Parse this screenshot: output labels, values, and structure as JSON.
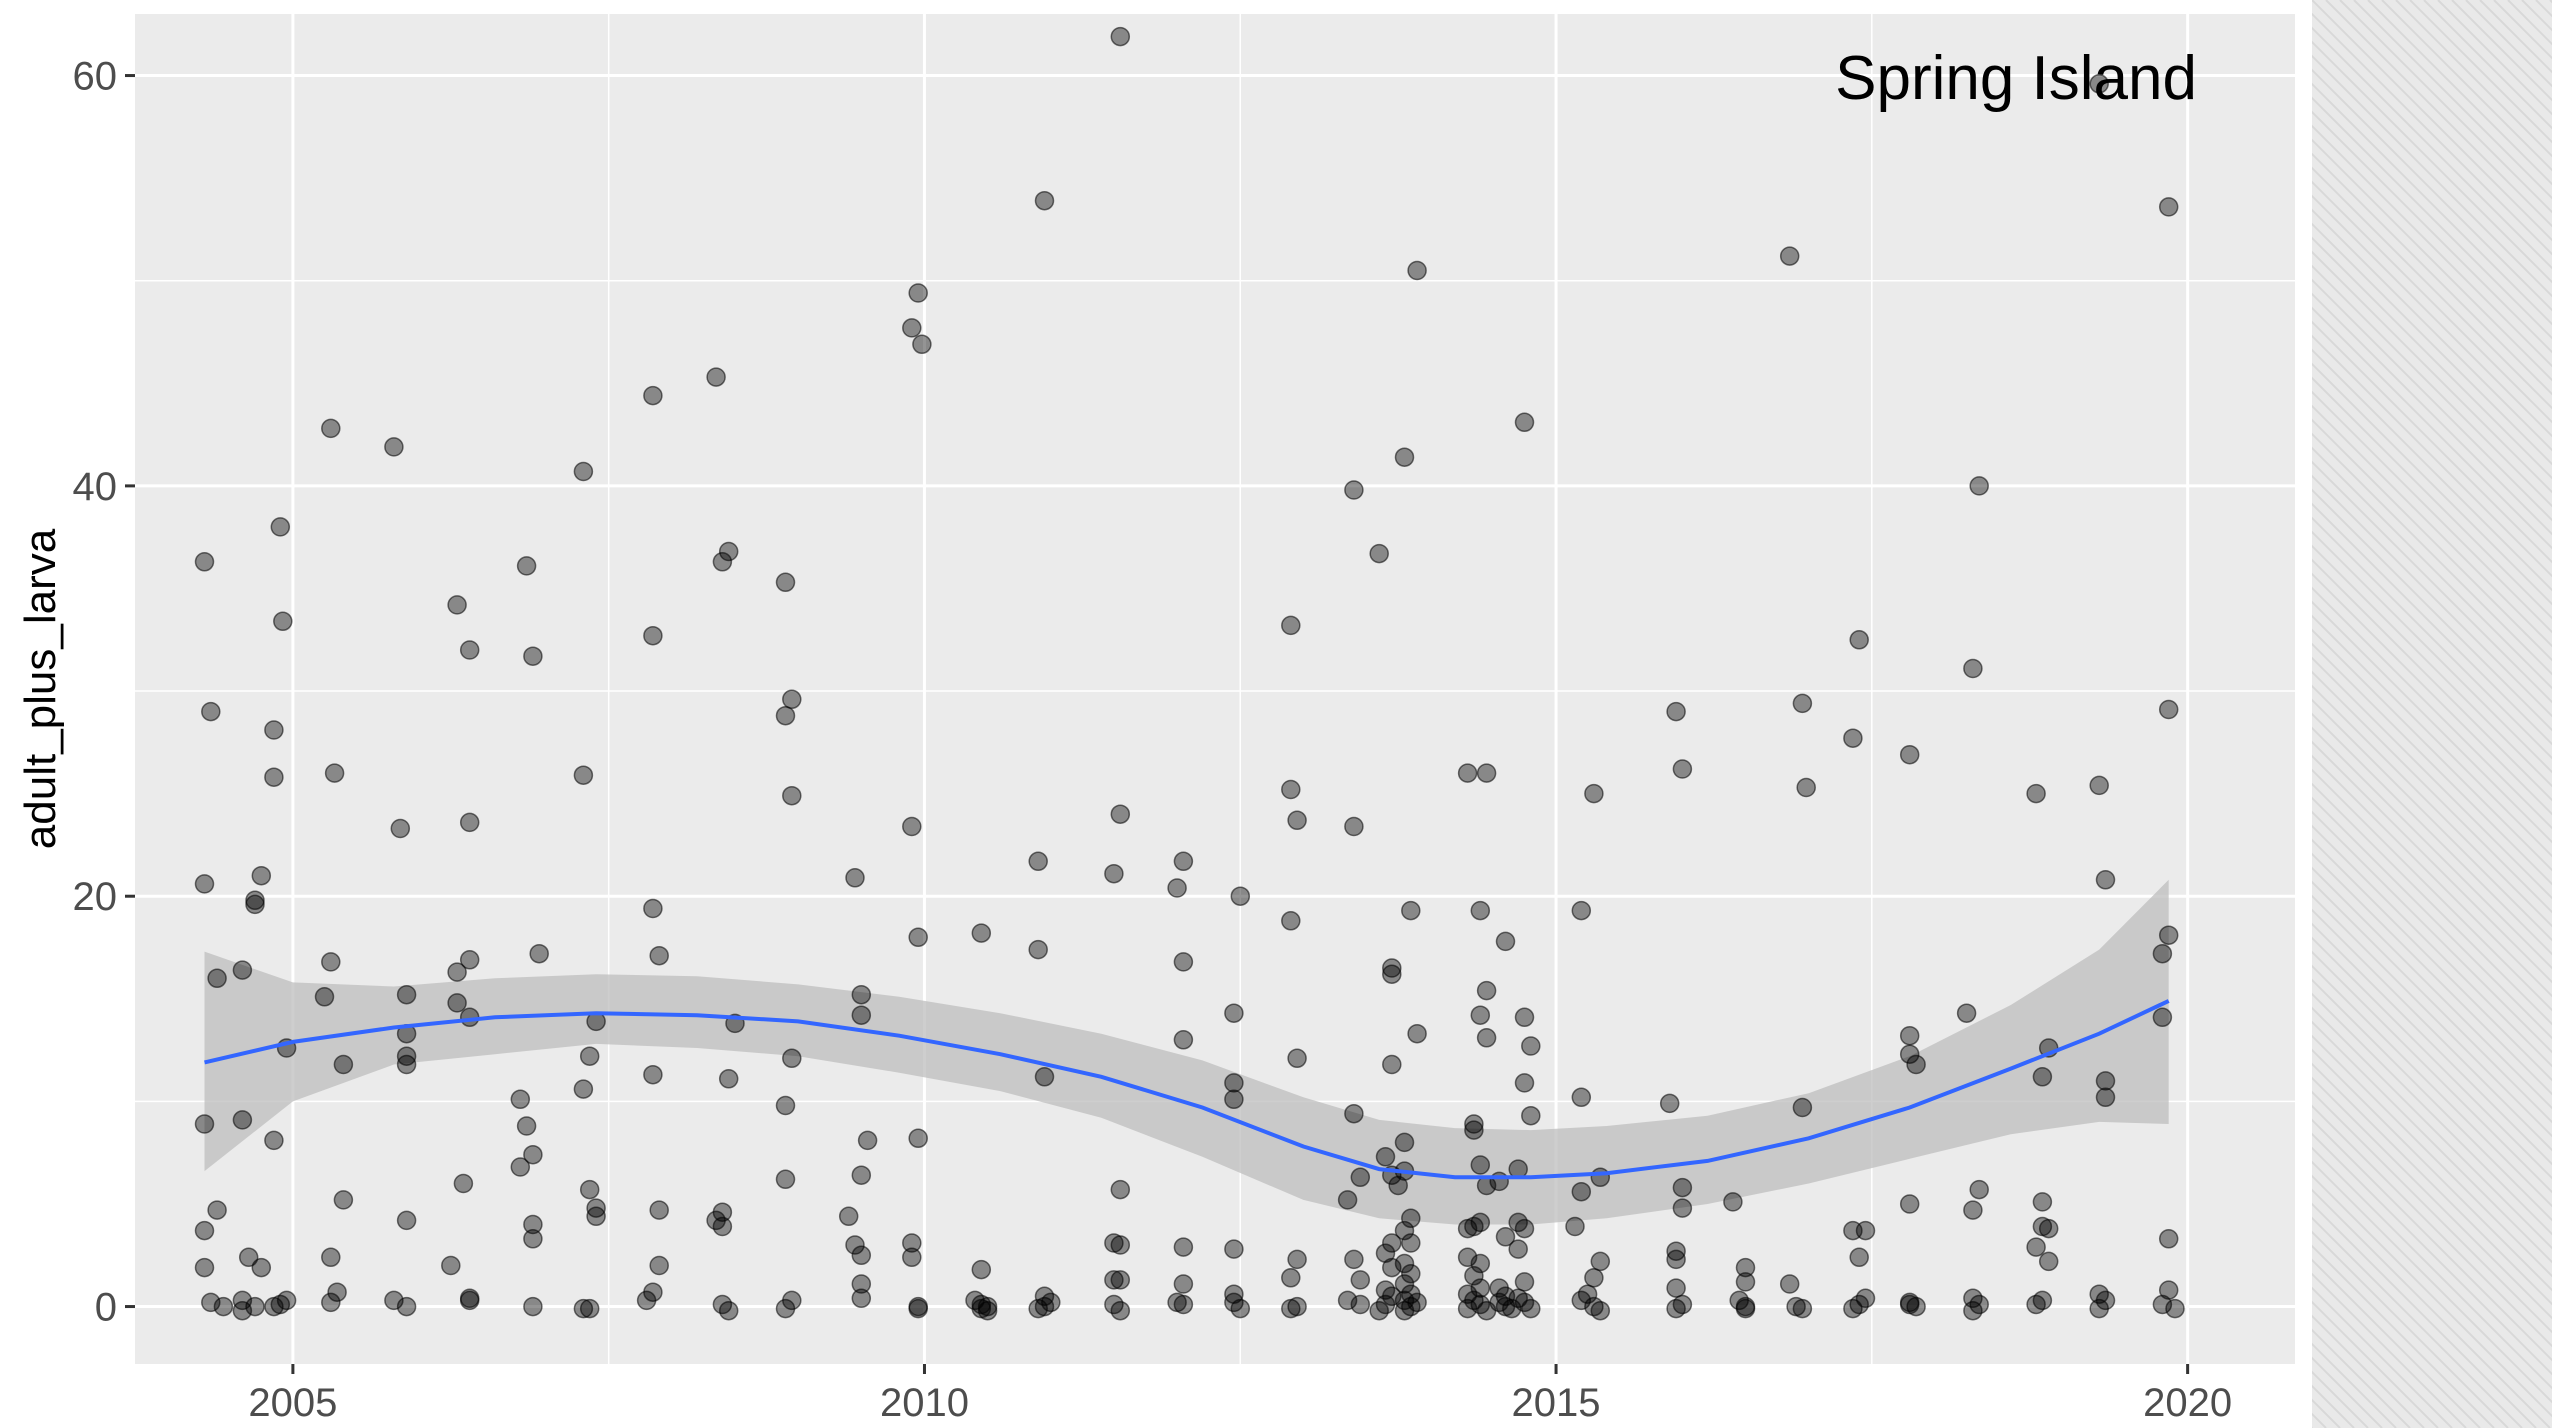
{
  "chart_data": {
    "type": "scatter",
    "title": "",
    "annotation": "Spring Island",
    "xlabel": "",
    "ylabel": "adult_plus_larva",
    "xlim": [
      2003.75,
      2020.85
    ],
    "ylim": [
      -2.8,
      63
    ],
    "x_ticks": [
      2005,
      2010,
      2015,
      2020
    ],
    "y_ticks": [
      0,
      20,
      40,
      60
    ],
    "grid": true,
    "colors": {
      "panel": "#ebebeb",
      "grid": "#ffffff",
      "point": "#000000",
      "smooth_line": "#3366ff",
      "ribbon": "#bdbdbd",
      "side_panel": "#e9e9e9"
    },
    "points": [
      [
        2004.3,
        36.3
      ],
      [
        2004.35,
        29
      ],
      [
        2004.3,
        20.6
      ],
      [
        2004.4,
        16
      ],
      [
        2004.3,
        8.9
      ],
      [
        2004.4,
        4.7
      ],
      [
        2004.3,
        3.7
      ],
      [
        2004.3,
        1.9
      ],
      [
        2004.35,
        0.2
      ],
      [
        2004.45,
        0
      ],
      [
        2004.6,
        16.4
      ],
      [
        2004.6,
        9.1
      ],
      [
        2004.7,
        19.8
      ],
      [
        2004.75,
        21
      ],
      [
        2004.7,
        19.6
      ],
      [
        2004.75,
        1.9
      ],
      [
        2004.65,
        2.4
      ],
      [
        2004.6,
        0.3
      ],
      [
        2004.6,
        -0.2
      ],
      [
        2004.7,
        0
      ],
      [
        2004.85,
        28.1
      ],
      [
        2004.85,
        25.8
      ],
      [
        2004.85,
        8.1
      ],
      [
        2004.9,
        0.1
      ],
      [
        2004.85,
        0
      ],
      [
        2004.95,
        0.3
      ],
      [
        2004.9,
        38
      ],
      [
        2004.92,
        33.4
      ],
      [
        2004.95,
        12.6
      ],
      [
        2005.3,
        42.8
      ],
      [
        2005.33,
        26
      ],
      [
        2005.3,
        16.8
      ],
      [
        2005.25,
        15.1
      ],
      [
        2005.4,
        11.8
      ],
      [
        2005.4,
        5.2
      ],
      [
        2005.3,
        2.4
      ],
      [
        2005.35,
        0.7
      ],
      [
        2005.3,
        0.2
      ],
      [
        2005.8,
        41.9
      ],
      [
        2005.85,
        23.3
      ],
      [
        2005.9,
        15.2
      ],
      [
        2005.9,
        13.3
      ],
      [
        2005.9,
        12.2
      ],
      [
        2005.9,
        11.8
      ],
      [
        2005.9,
        4.2
      ],
      [
        2005.8,
        0.3
      ],
      [
        2005.9,
        0
      ],
      [
        2006.3,
        34.2
      ],
      [
        2006.4,
        32
      ],
      [
        2006.4,
        23.6
      ],
      [
        2006.3,
        16.3
      ],
      [
        2006.4,
        16.9
      ],
      [
        2006.3,
        14.8
      ],
      [
        2006.4,
        14.1
      ],
      [
        2006.35,
        6
      ],
      [
        2006.25,
        2
      ],
      [
        2006.4,
        0.4
      ],
      [
        2006.4,
        0.3
      ],
      [
        2006.85,
        36.1
      ],
      [
        2006.9,
        31.7
      ],
      [
        2006.95,
        17.2
      ],
      [
        2006.8,
        10.1
      ],
      [
        2006.85,
        8.8
      ],
      [
        2006.9,
        7.4
      ],
      [
        2006.8,
        6.8
      ],
      [
        2006.9,
        4
      ],
      [
        2006.9,
        3.3
      ],
      [
        2006.9,
        0
      ],
      [
        2007.3,
        40.7
      ],
      [
        2007.3,
        25.9
      ],
      [
        2007.4,
        13.9
      ],
      [
        2007.35,
        12.2
      ],
      [
        2007.3,
        10.6
      ],
      [
        2007.35,
        5.7
      ],
      [
        2007.4,
        4.8
      ],
      [
        2007.4,
        4.4
      ],
      [
        2007.3,
        -0.1
      ],
      [
        2007.35,
        -0.1
      ],
      [
        2007.85,
        44.4
      ],
      [
        2007.85,
        32.7
      ],
      [
        2007.85,
        19.4
      ],
      [
        2007.9,
        17.1
      ],
      [
        2007.85,
        11.3
      ],
      [
        2007.9,
        4.7
      ],
      [
        2007.9,
        2
      ],
      [
        2007.85,
        0.7
      ],
      [
        2007.8,
        0.3
      ],
      [
        2008.35,
        45.3
      ],
      [
        2008.45,
        36.8
      ],
      [
        2008.4,
        36.3
      ],
      [
        2008.5,
        13.8
      ],
      [
        2008.45,
        11.1
      ],
      [
        2008.4,
        4.6
      ],
      [
        2008.35,
        4.2
      ],
      [
        2008.4,
        3.9
      ],
      [
        2008.4,
        0.1
      ],
      [
        2008.45,
        -0.2
      ],
      [
        2008.9,
        35.3
      ],
      [
        2008.95,
        29.6
      ],
      [
        2008.9,
        28.8
      ],
      [
        2008.95,
        24.9
      ],
      [
        2008.95,
        12.1
      ],
      [
        2008.9,
        9.8
      ],
      [
        2008.9,
        6.2
      ],
      [
        2008.95,
        0.3
      ],
      [
        2008.9,
        -0.1
      ],
      [
        2009.45,
        20.9
      ],
      [
        2009.5,
        15.2
      ],
      [
        2009.5,
        14.2
      ],
      [
        2009.55,
        8.1
      ],
      [
        2009.5,
        6.4
      ],
      [
        2009.4,
        4.4
      ],
      [
        2009.45,
        3
      ],
      [
        2009.5,
        2.5
      ],
      [
        2009.5,
        1.1
      ],
      [
        2009.5,
        0.4
      ],
      [
        2009.9,
        47.7
      ],
      [
        2009.95,
        49.4
      ],
      [
        2009.98,
        46.9
      ],
      [
        2009.9,
        23.4
      ],
      [
        2009.95,
        18
      ],
      [
        2009.95,
        8.2
      ],
      [
        2009.9,
        3.1
      ],
      [
        2009.9,
        2.4
      ],
      [
        2009.95,
        0
      ],
      [
        2009.95,
        -0.1
      ],
      [
        2010.45,
        18.2
      ],
      [
        2010.45,
        1.8
      ],
      [
        2010.4,
        0.3
      ],
      [
        2010.45,
        0.1
      ],
      [
        2010.5,
        0
      ],
      [
        2010.45,
        -0.1
      ],
      [
        2010.5,
        -0.2
      ],
      [
        2010.95,
        53.9
      ],
      [
        2010.9,
        21.7
      ],
      [
        2010.9,
        17.4
      ],
      [
        2010.95,
        11.2
      ],
      [
        2010.95,
        0.5
      ],
      [
        2011,
        0.2
      ],
      [
        2010.95,
        0
      ],
      [
        2010.9,
        -0.1
      ],
      [
        2011.55,
        61.9
      ],
      [
        2011.55,
        24
      ],
      [
        2011.5,
        21.1
      ],
      [
        2011.55,
        5.7
      ],
      [
        2011.5,
        3.1
      ],
      [
        2011.55,
        3
      ],
      [
        2011.5,
        1.3
      ],
      [
        2011.55,
        1.3
      ],
      [
        2011.5,
        0.1
      ],
      [
        2011.55,
        -0.2
      ],
      [
        2012.05,
        21.7
      ],
      [
        2012,
        20.4
      ],
      [
        2012.05,
        16.8
      ],
      [
        2012.05,
        13
      ],
      [
        2012.05,
        2.9
      ],
      [
        2012.05,
        1.1
      ],
      [
        2012,
        0.2
      ],
      [
        2012.05,
        0.1
      ],
      [
        2012.5,
        20
      ],
      [
        2012.45,
        14.3
      ],
      [
        2012.45,
        10.9
      ],
      [
        2012.45,
        10.1
      ],
      [
        2012.45,
        2.8
      ],
      [
        2012.45,
        0.6
      ],
      [
        2012.45,
        0.2
      ],
      [
        2012.5,
        -0.1
      ],
      [
        2012.9,
        33.2
      ],
      [
        2012.9,
        25.2
      ],
      [
        2012.95,
        23.7
      ],
      [
        2012.9,
        18.8
      ],
      [
        2012.95,
        12.1
      ],
      [
        2012.95,
        2.3
      ],
      [
        2012.9,
        1.4
      ],
      [
        2012.95,
        0
      ],
      [
        2012.9,
        -0.1
      ],
      [
        2013.4,
        39.8
      ],
      [
        2013.4,
        23.4
      ],
      [
        2013.4,
        9.4
      ],
      [
        2013.45,
        6.3
      ],
      [
        2013.35,
        5.2
      ],
      [
        2013.4,
        2.3
      ],
      [
        2013.45,
        1.3
      ],
      [
        2013.35,
        0.3
      ],
      [
        2013.45,
        0.1
      ],
      [
        2013.6,
        36.7
      ],
      [
        2013.7,
        16.5
      ],
      [
        2013.7,
        16.2
      ],
      [
        2013.7,
        11.8
      ],
      [
        2013.65,
        7.3
      ],
      [
        2013.7,
        6.4
      ],
      [
        2013.75,
        5.9
      ],
      [
        2013.7,
        3.1
      ],
      [
        2013.65,
        2.6
      ],
      [
        2013.7,
        1.9
      ],
      [
        2013.65,
        0.8
      ],
      [
        2013.7,
        0.5
      ],
      [
        2013.65,
        0.1
      ],
      [
        2013.6,
        -0.2
      ],
      [
        2013.8,
        41.4
      ],
      [
        2013.9,
        50.5
      ],
      [
        2013.85,
        19.3
      ],
      [
        2013.9,
        13.3
      ],
      [
        2013.8,
        8
      ],
      [
        2013.8,
        6.6
      ],
      [
        2013.85,
        4.3
      ],
      [
        2013.8,
        3.7
      ],
      [
        2013.85,
        3.1
      ],
      [
        2013.8,
        2.1
      ],
      [
        2013.85,
        1.6
      ],
      [
        2013.8,
        1.1
      ],
      [
        2013.85,
        0.6
      ],
      [
        2013.8,
        0.3
      ],
      [
        2013.85,
        0
      ],
      [
        2013.8,
        -0.2
      ],
      [
        2013.9,
        0.2
      ],
      [
        2014.3,
        26
      ],
      [
        2014.45,
        26
      ],
      [
        2014.4,
        19.3
      ],
      [
        2014.45,
        15.4
      ],
      [
        2014.4,
        14.2
      ],
      [
        2014.45,
        13.1
      ],
      [
        2014.35,
        8.9
      ],
      [
        2014.35,
        8.6
      ],
      [
        2014.3,
        3.8
      ],
      [
        2014.4,
        6.9
      ],
      [
        2014.45,
        5.9
      ],
      [
        2014.4,
        4.1
      ],
      [
        2014.35,
        3.9
      ],
      [
        2014.3,
        2.4
      ],
      [
        2014.4,
        2.1
      ],
      [
        2014.35,
        1.5
      ],
      [
        2014.4,
        0.9
      ],
      [
        2014.3,
        0.6
      ],
      [
        2014.35,
        0.3
      ],
      [
        2014.4,
        0.1
      ],
      [
        2014.3,
        -0.1
      ],
      [
        2014.45,
        -0.2
      ],
      [
        2014.55,
        6.1
      ],
      [
        2014.6,
        17.8
      ],
      [
        2014.6,
        3.4
      ],
      [
        2014.55,
        0.9
      ],
      [
        2014.6,
        0.5
      ],
      [
        2014.55,
        0.2
      ],
      [
        2014.6,
        0
      ],
      [
        2014.65,
        -0.1
      ],
      [
        2014.75,
        43.1
      ],
      [
        2014.75,
        14.1
      ],
      [
        2014.8,
        12.7
      ],
      [
        2014.75,
        10.9
      ],
      [
        2014.8,
        9.3
      ],
      [
        2014.7,
        6.7
      ],
      [
        2014.7,
        4.1
      ],
      [
        2014.75,
        3.8
      ],
      [
        2014.7,
        2.8
      ],
      [
        2014.75,
        1.2
      ],
      [
        2014.7,
        0.4
      ],
      [
        2014.75,
        0.2
      ],
      [
        2014.8,
        -0.1
      ],
      [
        2015.2,
        19.3
      ],
      [
        2015.3,
        25
      ],
      [
        2015.2,
        10.2
      ],
      [
        2015.2,
        5.6
      ],
      [
        2015.15,
        3.9
      ],
      [
        2015.35,
        6.3
      ],
      [
        2015.35,
        2.2
      ],
      [
        2015.3,
        1.4
      ],
      [
        2015.25,
        0.6
      ],
      [
        2015.2,
        0.3
      ],
      [
        2015.3,
        0
      ],
      [
        2015.35,
        -0.2
      ],
      [
        2015.95,
        29
      ],
      [
        2016,
        26.2
      ],
      [
        2015.9,
        9.9
      ],
      [
        2016,
        5.8
      ],
      [
        2016,
        4.8
      ],
      [
        2015.95,
        2.7
      ],
      [
        2015.95,
        2.3
      ],
      [
        2015.95,
        0.9
      ],
      [
        2016,
        0.1
      ],
      [
        2015.95,
        -0.1
      ],
      [
        2016.4,
        5.1
      ],
      [
        2016.5,
        1.9
      ],
      [
        2016.5,
        1.2
      ],
      [
        2016.45,
        0.3
      ],
      [
        2016.5,
        0
      ],
      [
        2016.5,
        -0.1
      ],
      [
        2016.85,
        51.2
      ],
      [
        2016.95,
        29.4
      ],
      [
        2016.98,
        25.3
      ],
      [
        2016.95,
        9.7
      ],
      [
        2016.85,
        1.1
      ],
      [
        2016.9,
        0
      ],
      [
        2016.95,
        -0.1
      ],
      [
        2017.4,
        32.5
      ],
      [
        2017.35,
        27.7
      ],
      [
        2017.35,
        3.7
      ],
      [
        2017.45,
        3.7
      ],
      [
        2017.4,
        2.4
      ],
      [
        2017.45,
        0.4
      ],
      [
        2017.4,
        0.1
      ],
      [
        2017.35,
        -0.1
      ],
      [
        2017.8,
        26.9
      ],
      [
        2017.8,
        13.2
      ],
      [
        2017.8,
        12.3
      ],
      [
        2017.85,
        11.8
      ],
      [
        2017.8,
        5
      ],
      [
        2017.8,
        0.2
      ],
      [
        2017.85,
        0
      ],
      [
        2017.8,
        0.1
      ],
      [
        2018.35,
        40
      ],
      [
        2018.3,
        31.1
      ],
      [
        2018.25,
        14.3
      ],
      [
        2018.35,
        5.7
      ],
      [
        2018.3,
        4.7
      ],
      [
        2018.3,
        0.4
      ],
      [
        2018.35,
        0.1
      ],
      [
        2018.3,
        -0.2
      ],
      [
        2018.8,
        25
      ],
      [
        2018.9,
        12.6
      ],
      [
        2018.85,
        11.2
      ],
      [
        2018.85,
        5.1
      ],
      [
        2018.85,
        3.9
      ],
      [
        2018.9,
        3.8
      ],
      [
        2018.8,
        2.9
      ],
      [
        2018.9,
        2.2
      ],
      [
        2018.85,
        0.3
      ],
      [
        2018.8,
        0.1
      ],
      [
        2019.3,
        59.6
      ],
      [
        2019.3,
        25.4
      ],
      [
        2019.35,
        20.8
      ],
      [
        2019.35,
        11
      ],
      [
        2019.35,
        10.2
      ],
      [
        2019.3,
        0.6
      ],
      [
        2019.35,
        0.3
      ],
      [
        2019.3,
        -0.1
      ],
      [
        2019.85,
        53.6
      ],
      [
        2019.85,
        29.1
      ],
      [
        2019.85,
        18.1
      ],
      [
        2019.8,
        17.2
      ],
      [
        2019.8,
        14.1
      ],
      [
        2019.85,
        3.3
      ],
      [
        2019.85,
        0.8
      ],
      [
        2019.8,
        0.1
      ],
      [
        2019.9,
        -0.1
      ]
    ],
    "smooth": {
      "x": [
        2004.3,
        2005.0,
        2005.8,
        2006.6,
        2007.4,
        2008.2,
        2009.0,
        2009.8,
        2010.6,
        2011.4,
        2012.2,
        2013.0,
        2013.6,
        2014.2,
        2014.8,
        2015.4,
        2016.2,
        2017.0,
        2017.8,
        2018.6,
        2019.3,
        2019.85
      ],
      "y": [
        11.9,
        12.9,
        13.6,
        14.1,
        14.3,
        14.2,
        13.9,
        13.2,
        12.3,
        11.2,
        9.7,
        7.8,
        6.7,
        6.3,
        6.3,
        6.5,
        7.1,
        8.2,
        9.7,
        11.6,
        13.3,
        14.9
      ],
      "lower": [
        6.6,
        10.0,
        11.8,
        12.3,
        12.8,
        12.6,
        12.2,
        11.4,
        10.5,
        9.2,
        7.3,
        5.2,
        4.3,
        4.0,
        4.0,
        4.3,
        5.0,
        6.0,
        7.2,
        8.4,
        9.0,
        8.9
      ],
      "upper": [
        17.3,
        15.8,
        15.6,
        16.0,
        16.2,
        16.1,
        15.7,
        15.1,
        14.3,
        13.3,
        12.0,
        10.2,
        9.1,
        8.7,
        8.6,
        8.8,
        9.3,
        10.4,
        12.2,
        14.7,
        17.4,
        20.8
      ]
    }
  }
}
